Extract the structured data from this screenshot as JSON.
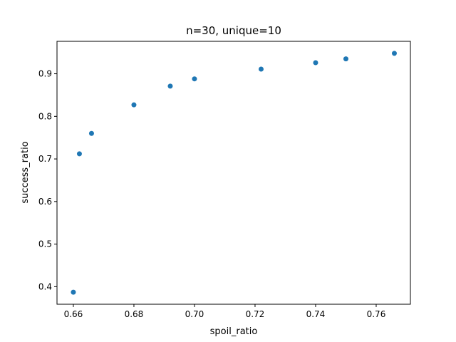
{
  "chart_data": {
    "type": "scatter",
    "title": "n=30, unique=10",
    "xlabel": "spoil_ratio",
    "ylabel": "success_ratio",
    "xlim": [
      0.6546,
      0.7713
    ],
    "ylim": [
      0.3588,
      0.9762
    ],
    "grid": false,
    "marker_color": "#1f77b4",
    "x_ticks": [
      0.66,
      0.68,
      0.7,
      0.72,
      0.74,
      0.76
    ],
    "x_tick_labels": [
      "0.66",
      "0.68",
      "0.70",
      "0.72",
      "0.74",
      "0.76"
    ],
    "y_ticks": [
      0.4,
      0.5,
      0.6,
      0.7,
      0.8,
      0.9
    ],
    "y_tick_labels": [
      "0.4",
      "0.5",
      "0.6",
      "0.7",
      "0.8",
      "0.9"
    ],
    "points": [
      {
        "x": 0.66,
        "y": 0.387
      },
      {
        "x": 0.662,
        "y": 0.712
      },
      {
        "x": 0.666,
        "y": 0.76
      },
      {
        "x": 0.68,
        "y": 0.827
      },
      {
        "x": 0.692,
        "y": 0.871
      },
      {
        "x": 0.7,
        "y": 0.888
      },
      {
        "x": 0.722,
        "y": 0.911
      },
      {
        "x": 0.74,
        "y": 0.926
      },
      {
        "x": 0.75,
        "y": 0.935
      },
      {
        "x": 0.766,
        "y": 0.948
      }
    ]
  }
}
